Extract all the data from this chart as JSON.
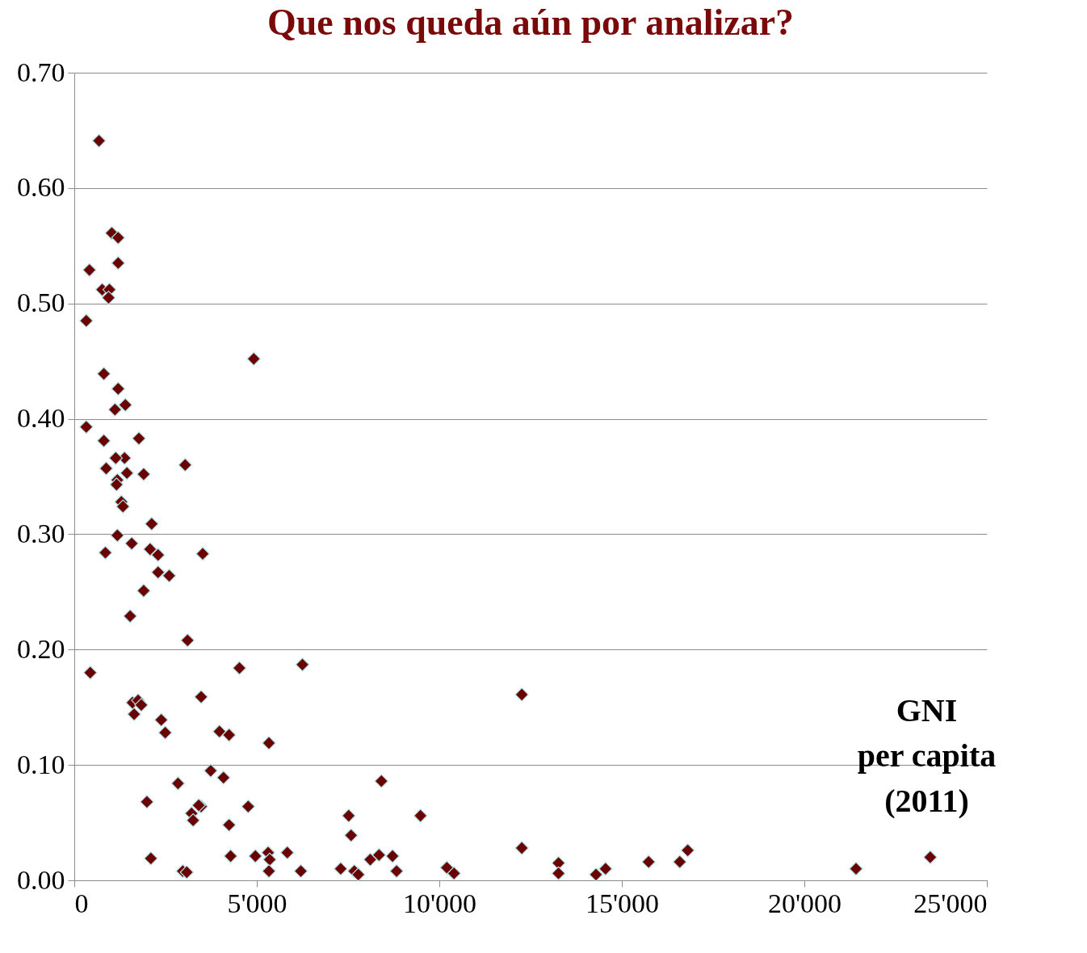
{
  "chart_data": {
    "type": "scatter",
    "title": "Que nos queda aún por analizar?",
    "xlabel": "GNI per capita (2011)",
    "x": [
      677,
      1027,
      1202,
      1202,
      415,
      765,
      962,
      940,
      328,
      4917,
      809,
      1202,
      1399,
      1115,
      328,
      1770,
      809,
      1377,
      1136,
      874,
      3038,
      1442,
      1901,
      1180,
      1158,
      1289,
      1333,
      2120,
      1180,
      1573,
      2076,
      2295,
      3518,
      852,
      2600,
      2295,
      1901,
      1530,
      3103,
      437,
      4524,
      6250,
      3475,
      1595,
      1748,
      1836,
      1639,
      2382,
      2491,
      3977,
      4240,
      5332,
      12260,
      3737,
      4087,
      2841,
      8413,
      1989,
      3475,
      3409,
      4764,
      3212,
      3256,
      7517,
      9484,
      4240,
      7583,
      2098,
      4283,
      4961,
      5310,
      5354,
      5835,
      5332,
      6206,
      2972,
      3081,
      7299,
      7671,
      7780,
      8108,
      8348,
      8719,
      8829,
      10206,
      10402,
      12260,
      13265,
      13265,
      14292,
      14554,
      15734,
      16587,
      16805,
      21416,
      23449
    ],
    "series": [
      {
        "color": "#6b0000",
        "values": [
          0.641,
          0.561,
          0.557,
          0.535,
          0.529,
          0.512,
          0.512,
          0.505,
          0.485,
          0.452,
          0.439,
          0.426,
          0.412,
          0.408,
          0.393,
          0.383,
          0.381,
          0.366,
          0.366,
          0.357,
          0.36,
          0.353,
          0.352,
          0.347,
          0.343,
          0.328,
          0.324,
          0.309,
          0.299,
          0.292,
          0.287,
          0.282,
          0.283,
          0.284,
          0.264,
          0.267,
          0.251,
          0.229,
          0.208,
          0.18,
          0.184,
          0.187,
          0.159,
          0.154,
          0.156,
          0.152,
          0.144,
          0.139,
          0.128,
          0.129,
          0.126,
          0.119,
          0.161,
          0.095,
          0.089,
          0.084,
          0.086,
          0.068,
          0.064,
          0.065,
          0.064,
          0.058,
          0.052,
          0.056,
          0.056,
          0.048,
          0.039,
          0.019,
          0.021,
          0.021,
          0.024,
          0.018,
          0.024,
          0.008,
          0.008,
          0.008,
          0.007,
          0.01,
          0.008,
          0.005,
          0.018,
          0.022,
          0.021,
          0.008,
          0.011,
          0.006,
          0.028,
          0.015,
          0.006,
          0.005,
          0.01,
          0.016,
          0.016,
          0.026,
          0.01,
          0.02
        ]
      }
    ],
    "marker": "diamond",
    "grid": "y",
    "xlim": [
      0,
      25000
    ],
    "xticks": [
      0,
      {
        "value": 5000,
        "label": "5'000"
      },
      {
        "value": 10000,
        "label": "10'000"
      },
      {
        "value": 15000,
        "label": "15'000"
      },
      {
        "value": 20000,
        "label": "20'000"
      },
      {
        "value": 25000,
        "label": "25'000"
      }
    ],
    "ylim": [
      0,
      0.7
    ],
    "yticks": [
      {
        "value": 0,
        "label": "0.00"
      },
      {
        "value": 0.1,
        "label": "0.10"
      },
      {
        "value": 0.2,
        "label": "0.20"
      },
      {
        "value": 0.3,
        "label": "0.30"
      },
      {
        "value": 0.4,
        "label": "0.40"
      },
      {
        "value": 0.5,
        "label": "0.50"
      },
      {
        "value": 0.6,
        "label": "0.60"
      },
      {
        "value": 0.7,
        "label": "0.70"
      }
    ]
  }
}
